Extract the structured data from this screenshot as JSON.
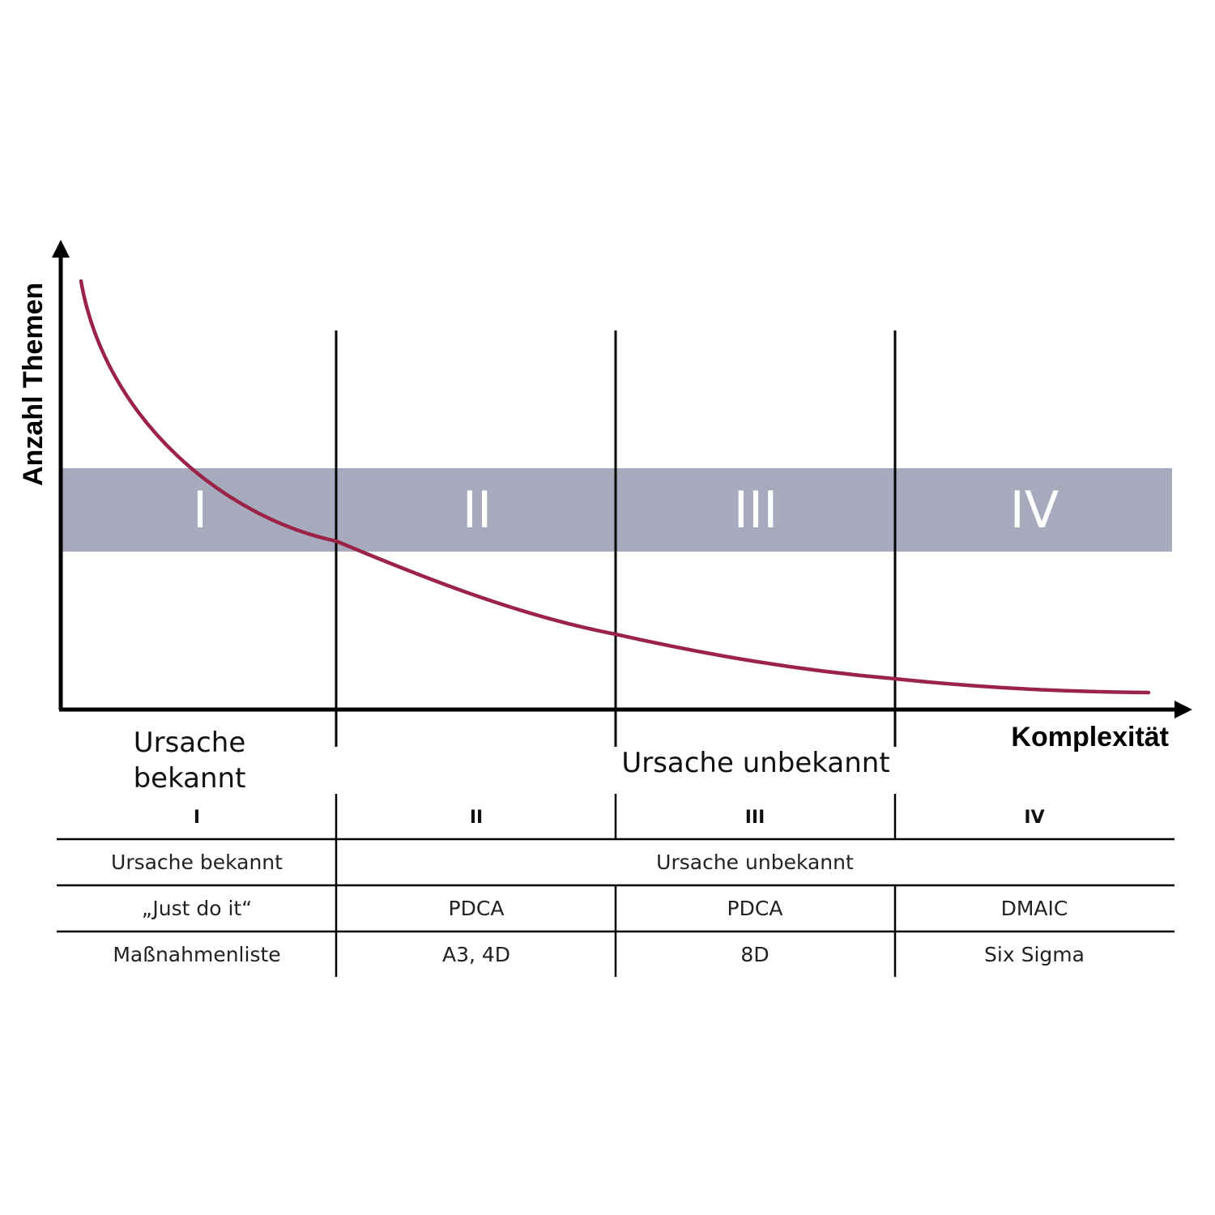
{
  "axes": {
    "y_label": "Anzahl Themen",
    "x_label": "Komplexität"
  },
  "band": {
    "color": "#a7a9bd",
    "labels": [
      "I",
      "II",
      "III",
      "IV"
    ]
  },
  "curve": {
    "color": "#9b2348"
  },
  "below_axis": {
    "known": [
      "Ursache",
      "bekannt"
    ],
    "unknown": "Ursache unbekannt"
  },
  "table": {
    "headers": [
      "I",
      "II",
      "III",
      "IV"
    ],
    "row_cause": {
      "known": "Ursache bekannt",
      "unknown": "Ursache unbekannt"
    },
    "row_method": [
      "„Just do it“",
      "PDCA",
      "PDCA",
      "DMAIC"
    ],
    "row_tool": [
      "Maßnahmenliste",
      "A3, 4D",
      "8D",
      "Six Sigma"
    ]
  }
}
